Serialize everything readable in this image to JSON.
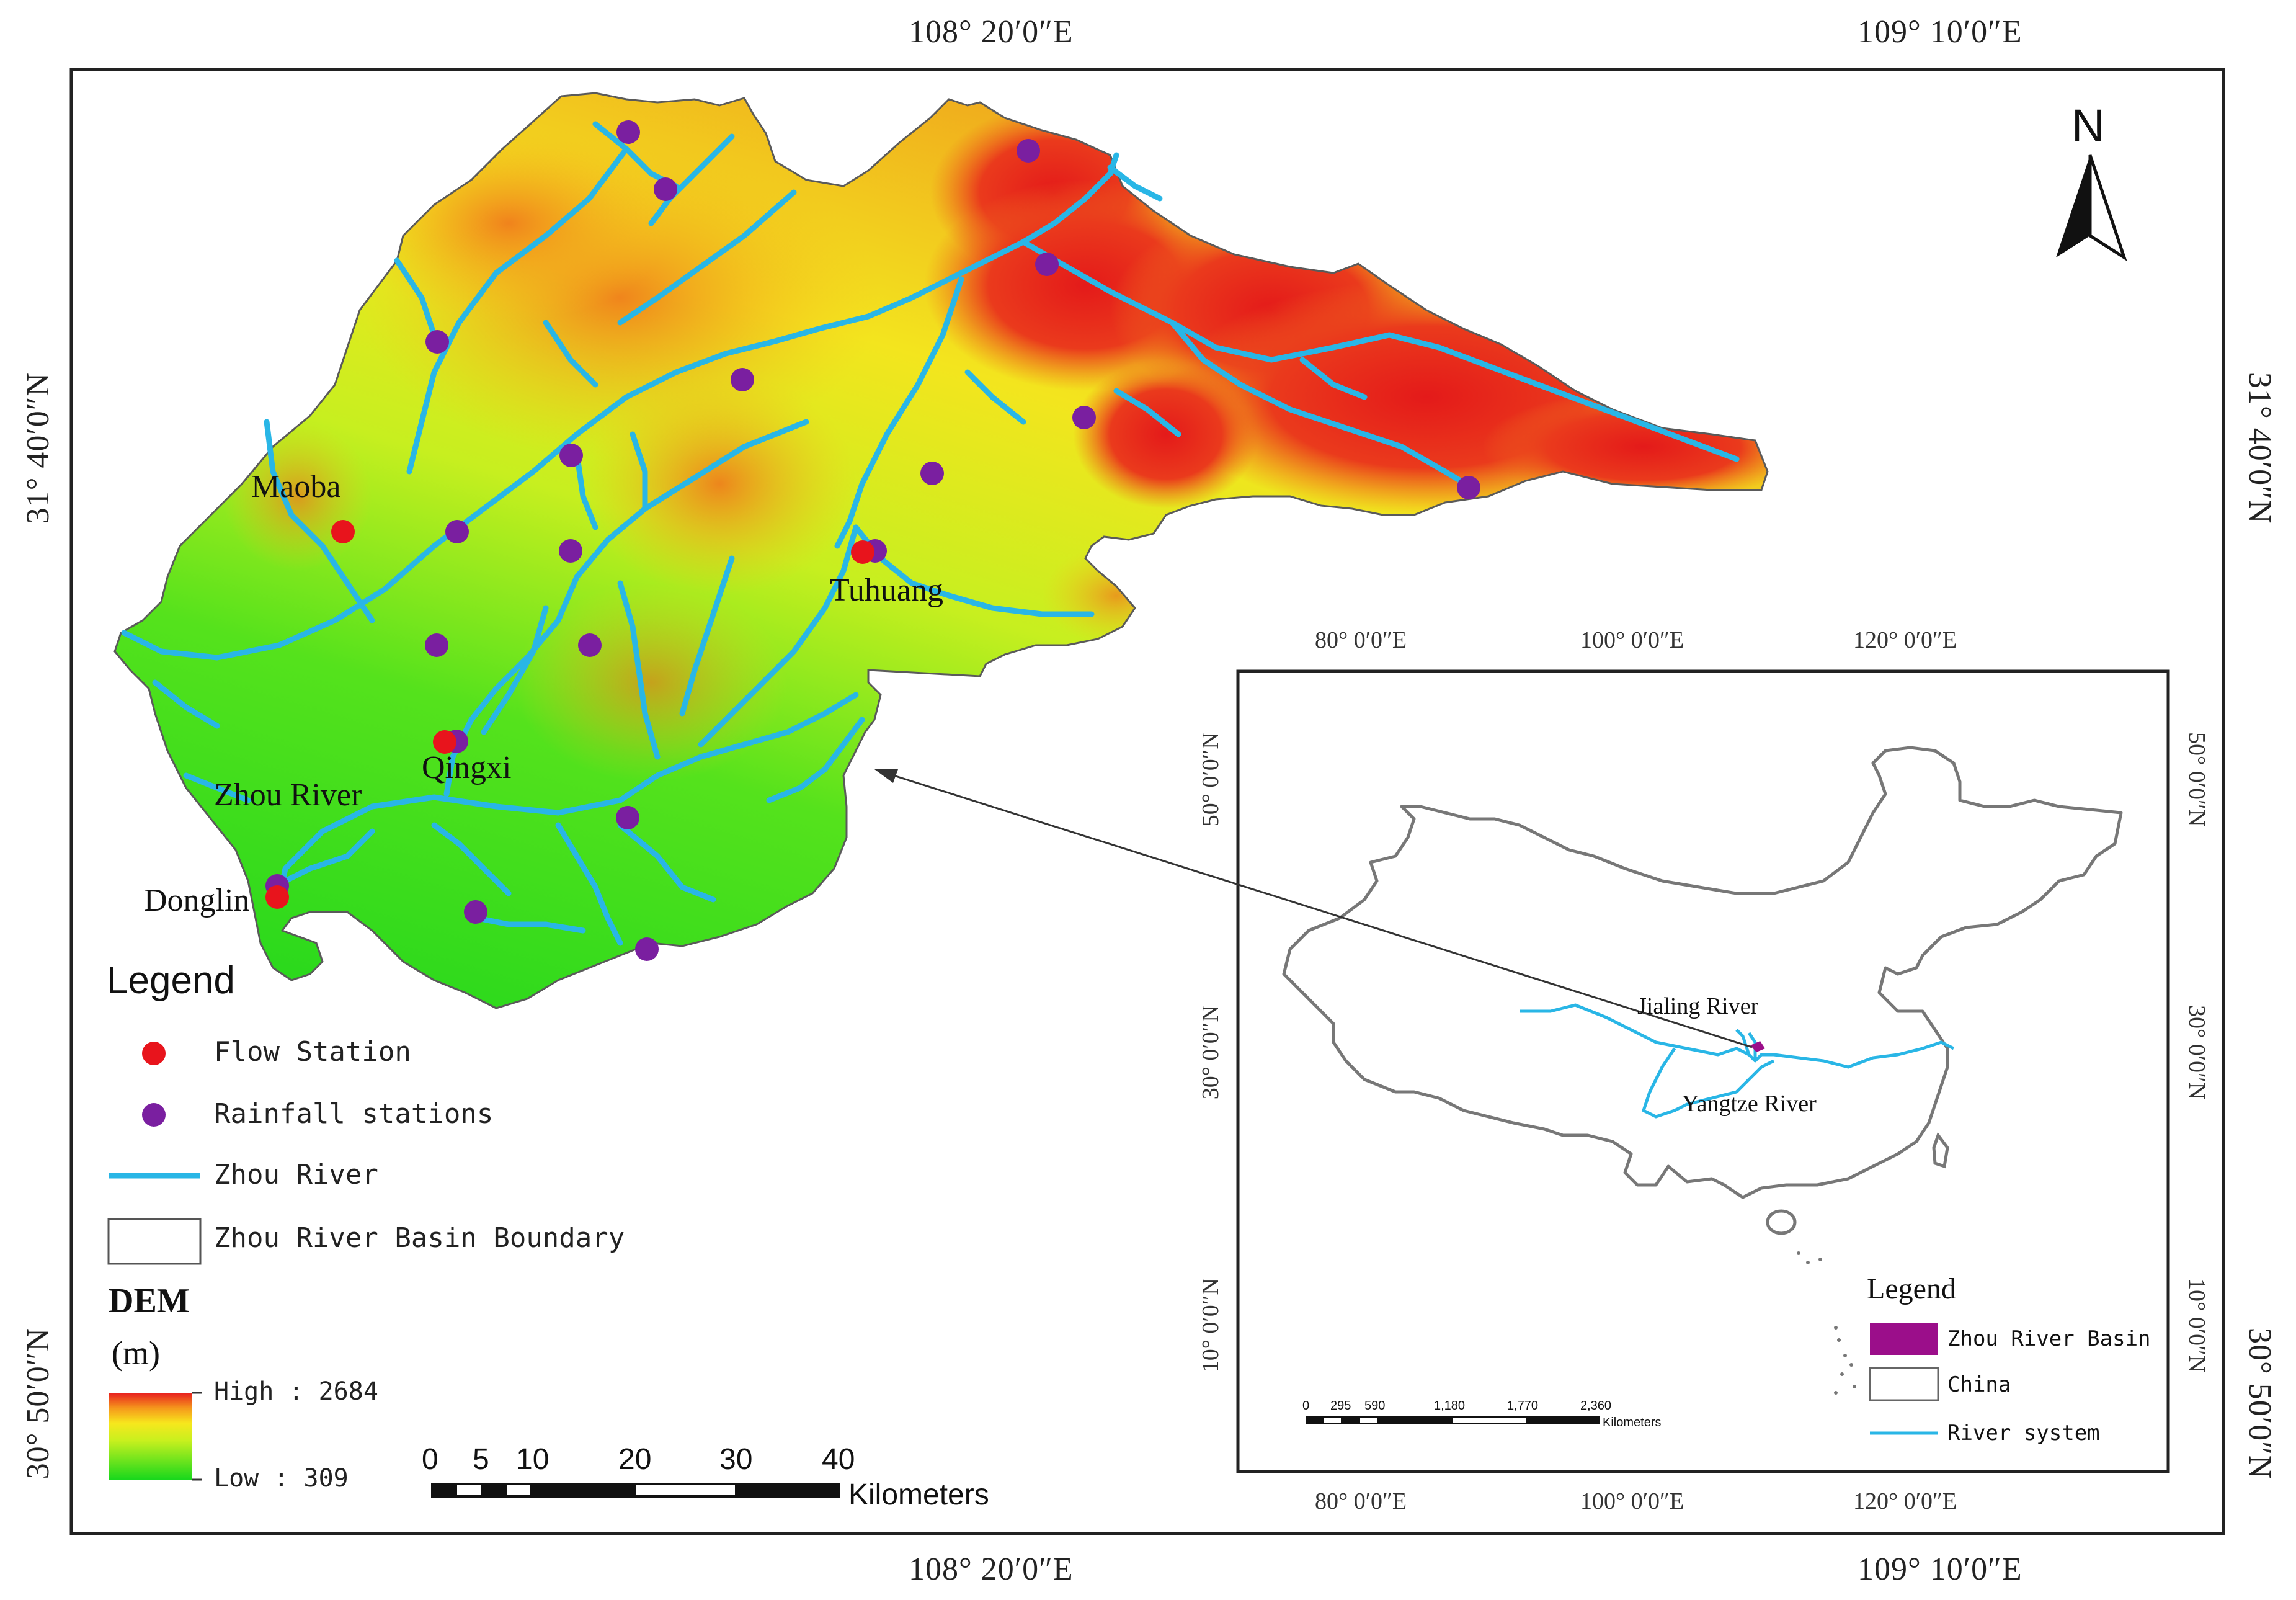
{
  "map": {
    "top_coords": [
      "108° 20′0″E",
      "109° 10′0″E"
    ],
    "bottom_coords": [
      "108° 20′0″E",
      "109° 10′0″E"
    ],
    "left_coords": [
      "31° 40′0″N",
      "30° 50′0″N"
    ],
    "right_coords": [
      "31° 40′0″N",
      "30° 50′0″N"
    ],
    "places": {
      "maoba": "Maoba",
      "tuhuang": "Tuhuang",
      "qingxi": "Qingxi",
      "zhou_river": "Zhou River",
      "donglin": "Donglin"
    },
    "north_label": "N",
    "colors": {
      "flow_station": "#e8141c",
      "rainfall_station": "#7a1fa0",
      "river": "#29b6e6",
      "dem_high": "#e8201e",
      "dem_mid": "#f4e21c",
      "dem_low": "#1fd81f"
    }
  },
  "legend": {
    "title": "Legend",
    "items": [
      {
        "label": "Flow Station",
        "symbol": "flow-station-dot"
      },
      {
        "label": "Rainfall stations",
        "symbol": "rainfall-station-dot"
      },
      {
        "label": "Zhou River",
        "symbol": "river-line"
      },
      {
        "label": "Zhou River Basin Boundary",
        "symbol": "boundary-box"
      }
    ],
    "dem_title": "DEM",
    "dem_unit": "(m)",
    "dem_high": "High : 2684",
    "dem_low": "Low : 309"
  },
  "scale_bar": {
    "ticks": [
      "0",
      "5",
      "10",
      "20",
      "30",
      "40"
    ],
    "unit": "Kilometers"
  },
  "inset": {
    "top_coords": [
      "80° 0′0″E",
      "100° 0′0″E",
      "120° 0′0″E"
    ],
    "bottom_coords": [
      "80° 0′0″E",
      "100° 0′0″E",
      "120° 0′0″E"
    ],
    "left_coords": [
      "50° 0′0″N",
      "30° 0′0″N",
      "10° 0′0″N"
    ],
    "right_coords": [
      "50° 0′0″N",
      "30° 0′0″N",
      "10° 0′0″N"
    ],
    "labels": {
      "jialing": "Jialing River",
      "yangtze": "Yangtze River"
    },
    "scale_ticks": [
      "0",
      "295",
      "590",
      "1,180",
      "1,770",
      "2,360"
    ],
    "scale_unit": "Kilometers",
    "legend": {
      "title": "Legend",
      "items": [
        {
          "label": "Zhou River Basin",
          "symbol": "basin-fill"
        },
        {
          "label": "China",
          "symbol": "china-box"
        },
        {
          "label": "River system",
          "symbol": "river-system-line"
        }
      ]
    },
    "colors": {
      "basin": "#9b0e8a",
      "river": "#29b6e6",
      "outline": "#666666"
    }
  }
}
